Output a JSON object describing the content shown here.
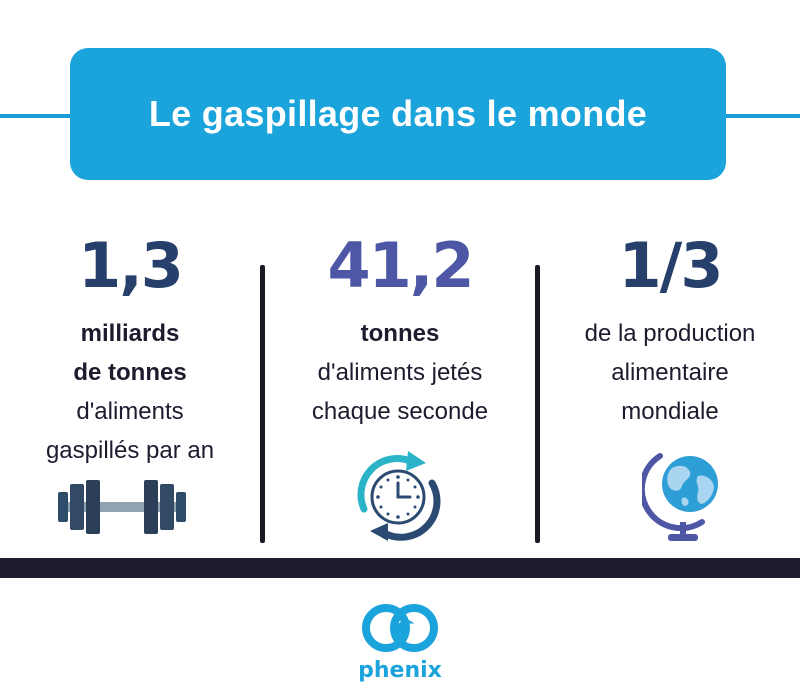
{
  "title": "Le gaspillage dans le monde",
  "colors": {
    "title_bg": "#1ba3dc",
    "navy": "#27406b",
    "purple": "#4e56a6",
    "dark_bar": "#1e1d2e",
    "brand": "#1ba3dc"
  },
  "stats": [
    {
      "value": "1,3",
      "bold_lines": [
        "milliards",
        "de tonnes"
      ],
      "lines": [
        "d'aliments",
        "gaspillés par an"
      ],
      "icon": "dumbbell-icon"
    },
    {
      "value": "41,2",
      "bold_lines": [
        "tonnes"
      ],
      "lines": [
        "d'aliments jetés",
        "chaque seconde"
      ],
      "icon": "clock-icon"
    },
    {
      "value": "1/3",
      "bold_lines": [],
      "lines": [
        "de la production",
        "alimentaire",
        "mondiale"
      ],
      "icon": "globe-icon"
    }
  ],
  "footer": {
    "brand_name": "phenix",
    "logo_icon": "phenix-logo-icon"
  }
}
